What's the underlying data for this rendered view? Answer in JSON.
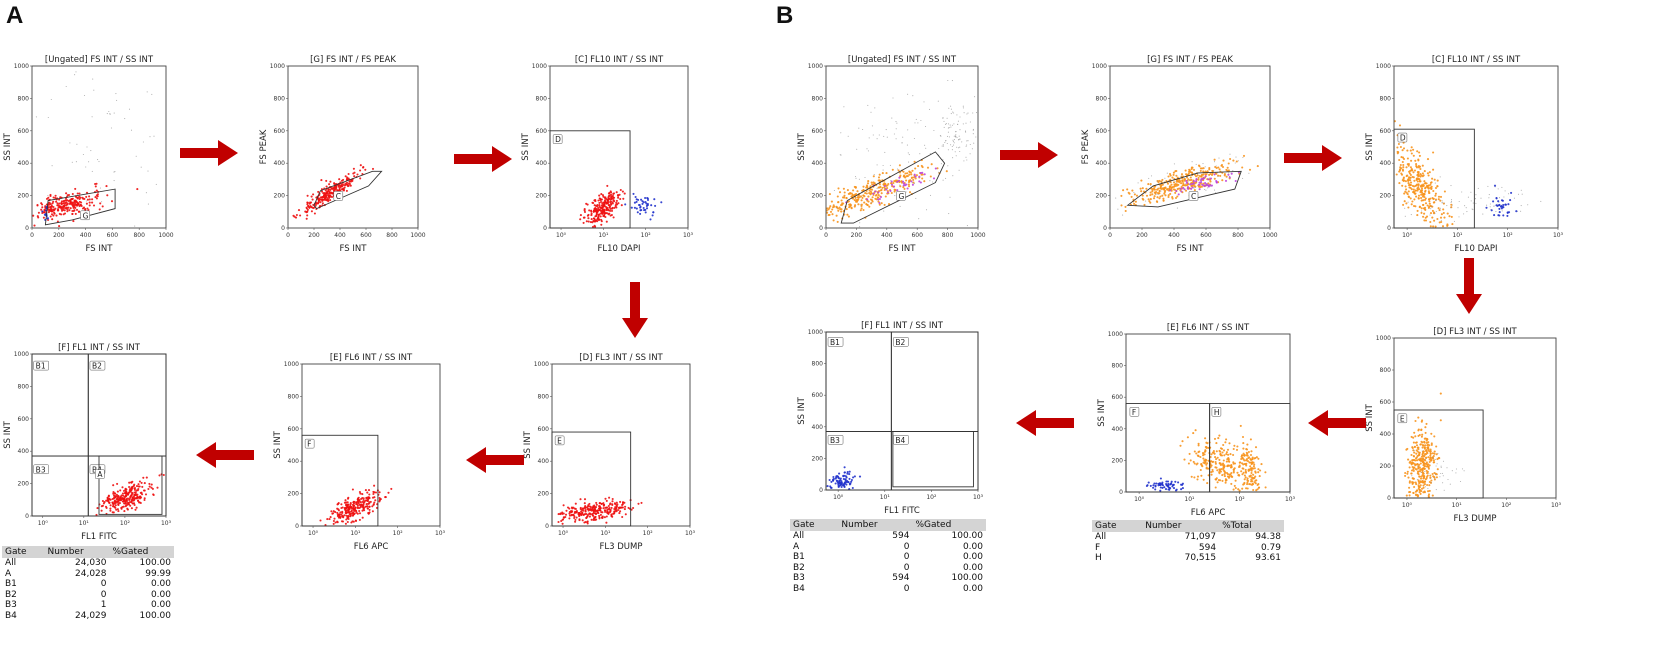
{
  "colors": {
    "arrow": "#c00000",
    "red_events": "#ee1111",
    "orange_events": "#f7941d",
    "blue_events": "#2233cc",
    "purple_events": "#bb44dd",
    "frame": "#444444"
  },
  "panels": {
    "A": {
      "letter": "A",
      "plots": [
        {
          "id": "a1",
          "title": "[Ungated] FS INT / SS INT",
          "xlabel": "FS INT",
          "ylabel": "SS INT",
          "xscale": "linear",
          "yscale": "linear",
          "xticks": [
            "0",
            "200",
            "400",
            "600",
            "800",
            "1000"
          ],
          "yticks": [
            "0",
            "200",
            "400",
            "600",
            "800",
            "1000"
          ],
          "gates": [
            "G"
          ],
          "cloud": "red"
        },
        {
          "id": "a2",
          "title": "[G] FS INT / FS PEAK",
          "xlabel": "FS INT",
          "ylabel": "FS PEAK",
          "xscale": "linear",
          "yscale": "linear",
          "xticks": [
            "0",
            "200",
            "400",
            "600",
            "800",
            "1000"
          ],
          "yticks": [
            "0",
            "200",
            "400",
            "600",
            "800",
            "1000"
          ],
          "gates": [
            "C"
          ],
          "cloud": "red"
        },
        {
          "id": "a3",
          "title": "[C] FL10 INT / SS INT",
          "xlabel": "FL10 DAPI",
          "ylabel": "SS INT",
          "xscale": "log",
          "yscale": "linear",
          "xticks": [
            "10⁰",
            "10¹",
            "10²",
            "10³"
          ],
          "yticks": [
            "0",
            "200",
            "400",
            "600",
            "800",
            "1000"
          ],
          "gates": [
            "D"
          ],
          "cloud": "red"
        },
        {
          "id": "a4",
          "title": "[D] FL3 INT / SS INT",
          "xlabel": "FL3 DUMP",
          "ylabel": "SS INT",
          "xscale": "log",
          "yscale": "linear",
          "xticks": [
            "10⁰",
            "10¹",
            "10²",
            "10³"
          ],
          "yticks": [
            "0",
            "200",
            "400",
            "600",
            "800",
            "1000"
          ],
          "gates": [
            "E"
          ],
          "cloud": "red"
        },
        {
          "id": "a5",
          "title": "[E] FL6 INT / SS INT",
          "xlabel": "FL6 APC",
          "ylabel": "SS INT",
          "xscale": "log",
          "yscale": "linear",
          "xticks": [
            "10⁰",
            "10¹",
            "10²",
            "10³"
          ],
          "yticks": [
            "0",
            "200",
            "400",
            "600",
            "800",
            "1000"
          ],
          "gates": [
            "F"
          ],
          "cloud": "red"
        },
        {
          "id": "a6",
          "title": "[F] FL1 INT / SS INT",
          "xlabel": "FL1 FITC",
          "ylabel": "SS INT",
          "xscale": "log",
          "yscale": "linear",
          "xticks": [
            "10⁰",
            "10¹",
            "10²",
            "10³"
          ],
          "yticks": [
            "0",
            "200",
            "400",
            "600",
            "800",
            "1000"
          ],
          "gates": [
            "B1",
            "B2",
            "B3",
            "B4",
            "A"
          ],
          "cloud": "red"
        }
      ],
      "stats": {
        "headers": [
          "Gate",
          "Number",
          "%Gated"
        ],
        "rows": [
          [
            "All",
            "24,030",
            "100.00"
          ],
          [
            "A",
            "24,028",
            "99.99"
          ],
          [
            "B1",
            "0",
            "0.00"
          ],
          [
            "B2",
            "0",
            "0.00"
          ],
          [
            "B3",
            "1",
            "0.00"
          ],
          [
            "B4",
            "24,029",
            "100.00"
          ]
        ]
      }
    },
    "B": {
      "letter": "B",
      "plots": [
        {
          "id": "b1",
          "title": "[Ungated] FS INT / SS INT",
          "xlabel": "FS INT",
          "ylabel": "SS INT",
          "xscale": "linear",
          "yscale": "linear",
          "xticks": [
            "0",
            "200",
            "400",
            "600",
            "800",
            "1000"
          ],
          "yticks": [
            "0",
            "200",
            "400",
            "600",
            "800",
            "1000"
          ],
          "gates": [
            "G"
          ],
          "cloud": "orange"
        },
        {
          "id": "b2",
          "title": "[G] FS INT / FS PEAK",
          "xlabel": "FS INT",
          "ylabel": "FS PEAK",
          "xscale": "linear",
          "yscale": "linear",
          "xticks": [
            "0",
            "200",
            "400",
            "600",
            "800",
            "1000"
          ],
          "yticks": [
            "0",
            "200",
            "400",
            "600",
            "800",
            "1000"
          ],
          "gates": [
            "C"
          ],
          "cloud": "orange"
        },
        {
          "id": "b3",
          "title": "[C] FL10 INT / SS INT",
          "xlabel": "FL10 DAPI",
          "ylabel": "SS INT",
          "xscale": "log",
          "yscale": "linear",
          "xticks": [
            "10⁰",
            "10¹",
            "10²",
            "10³"
          ],
          "yticks": [
            "0",
            "200",
            "400",
            "600",
            "800",
            "1000"
          ],
          "gates": [
            "D"
          ],
          "cloud": "orange"
        },
        {
          "id": "b4",
          "title": "[D] FL3 INT / SS INT",
          "xlabel": "FL3 DUMP",
          "ylabel": "SS INT",
          "xscale": "log",
          "yscale": "linear",
          "xticks": [
            "10⁰",
            "10¹",
            "10²",
            "10³"
          ],
          "yticks": [
            "0",
            "200",
            "400",
            "600",
            "800",
            "1000"
          ],
          "gates": [
            "E"
          ],
          "cloud": "orange"
        },
        {
          "id": "b5",
          "title": "[E] FL6 INT / SS INT",
          "xlabel": "FL6 APC",
          "ylabel": "SS INT",
          "xscale": "log",
          "yscale": "linear",
          "xticks": [
            "10⁰",
            "10¹",
            "10²",
            "10³"
          ],
          "yticks": [
            "0",
            "200",
            "400",
            "600",
            "800",
            "1000"
          ],
          "gates": [
            "F",
            "H"
          ],
          "cloud": "orange"
        },
        {
          "id": "b6",
          "title": "[F] FL1 INT / SS INT",
          "xlabel": "FL1 FITC",
          "ylabel": "SS INT",
          "xscale": "log",
          "yscale": "linear",
          "xticks": [
            "10⁰",
            "10¹",
            "10²",
            "10³"
          ],
          "yticks": [
            "0",
            "200",
            "400",
            "600",
            "800",
            "1000"
          ],
          "gates": [
            "B1",
            "B2",
            "B3",
            "B4"
          ],
          "cloud": "blue"
        }
      ],
      "stats_f": {
        "headers": [
          "Gate",
          "Number",
          "%Gated"
        ],
        "rows": [
          [
            "All",
            "594",
            "100.00"
          ],
          [
            "A",
            "0",
            "0.00"
          ],
          [
            "B1",
            "0",
            "0.00"
          ],
          [
            "B2",
            "0",
            "0.00"
          ],
          [
            "B3",
            "594",
            "100.00"
          ],
          [
            "B4",
            "0",
            "0.00"
          ]
        ]
      },
      "stats_e": {
        "headers": [
          "Gate",
          "Number",
          "%Total"
        ],
        "rows": [
          [
            "All",
            "71,097",
            "94.38"
          ],
          [
            "F",
            "594",
            "0.79"
          ],
          [
            "H",
            "70,515",
            "93.61"
          ]
        ]
      }
    }
  },
  "chart_data": [
    {
      "type": "scatter",
      "panel": "A",
      "title": "[Ungated] FS INT / SS INT",
      "xlabel": "FS INT",
      "ylabel": "SS INT",
      "xlim": [
        0,
        1000
      ],
      "ylim": [
        0,
        1000
      ],
      "gates": [
        "G"
      ]
    },
    {
      "type": "scatter",
      "panel": "A",
      "title": "[G] FS INT / FS PEAK",
      "xlabel": "FS INT",
      "ylabel": "FS PEAK",
      "xlim": [
        0,
        1000
      ],
      "ylim": [
        0,
        1000
      ],
      "gates": [
        "C"
      ]
    },
    {
      "type": "scatter",
      "panel": "A",
      "title": "[C] FL10 INT / SS INT",
      "xlabel": "FL10 DAPI",
      "ylabel": "SS INT",
      "xlim": [
        "10⁰",
        "10³"
      ],
      "ylim": [
        0,
        1000
      ],
      "gates": [
        "D"
      ]
    },
    {
      "type": "scatter",
      "panel": "A",
      "title": "[D] FL3 INT / SS INT",
      "xlabel": "FL3 DUMP",
      "ylabel": "SS INT",
      "xlim": [
        "10⁰",
        "10³"
      ],
      "ylim": [
        0,
        1000
      ],
      "gates": [
        "E"
      ]
    },
    {
      "type": "scatter",
      "panel": "A",
      "title": "[E] FL6 INT / SS INT",
      "xlabel": "FL6 APC",
      "ylabel": "SS INT",
      "xlim": [
        "10⁰",
        "10³"
      ],
      "ylim": [
        0,
        1000
      ],
      "gates": [
        "F"
      ]
    },
    {
      "type": "scatter",
      "panel": "A",
      "title": "[F] FL1 INT / SS INT",
      "xlabel": "FL1 FITC",
      "ylabel": "SS INT",
      "xlim": [
        "10⁰",
        "10³"
      ],
      "ylim": [
        0,
        1000
      ],
      "gates": [
        "B1",
        "B2",
        "B3",
        "B4",
        "A"
      ]
    },
    {
      "type": "scatter",
      "panel": "B",
      "title": "[Ungated] FS INT / SS INT",
      "xlabel": "FS INT",
      "ylabel": "SS INT",
      "xlim": [
        0,
        1000
      ],
      "ylim": [
        0,
        1000
      ],
      "gates": [
        "G"
      ]
    },
    {
      "type": "scatter",
      "panel": "B",
      "title": "[G] FS INT / FS PEAK",
      "xlabel": "FS INT",
      "ylabel": "FS PEAK",
      "xlim": [
        0,
        1000
      ],
      "ylim": [
        0,
        1000
      ],
      "gates": [
        "C"
      ]
    },
    {
      "type": "scatter",
      "panel": "B",
      "title": "[C] FL10 INT / SS INT",
      "xlabel": "FL10 DAPI",
      "ylabel": "SS INT",
      "xlim": [
        "10⁰",
        "10³"
      ],
      "ylim": [
        0,
        1000
      ],
      "gates": [
        "D"
      ]
    },
    {
      "type": "scatter",
      "panel": "B",
      "title": "[D] FL3 INT / SS INT",
      "xlabel": "FL3 DUMP",
      "ylabel": "SS INT",
      "xlim": [
        "10⁰",
        "10³"
      ],
      "ylim": [
        0,
        1000
      ],
      "gates": [
        "E"
      ]
    },
    {
      "type": "scatter",
      "panel": "B",
      "title": "[E] FL6 INT / SS INT",
      "xlabel": "FL6 APC",
      "ylabel": "SS INT",
      "xlim": [
        "10⁰",
        "10³"
      ],
      "ylim": [
        0,
        1000
      ],
      "gates": [
        "F",
        "H"
      ]
    },
    {
      "type": "scatter",
      "panel": "B",
      "title": "[F] FL1 INT / SS INT",
      "xlabel": "FL1 FITC",
      "ylabel": "SS INT",
      "xlim": [
        "10⁰",
        "10³"
      ],
      "ylim": [
        0,
        1000
      ],
      "gates": [
        "B1",
        "B2",
        "B3",
        "B4"
      ]
    }
  ]
}
